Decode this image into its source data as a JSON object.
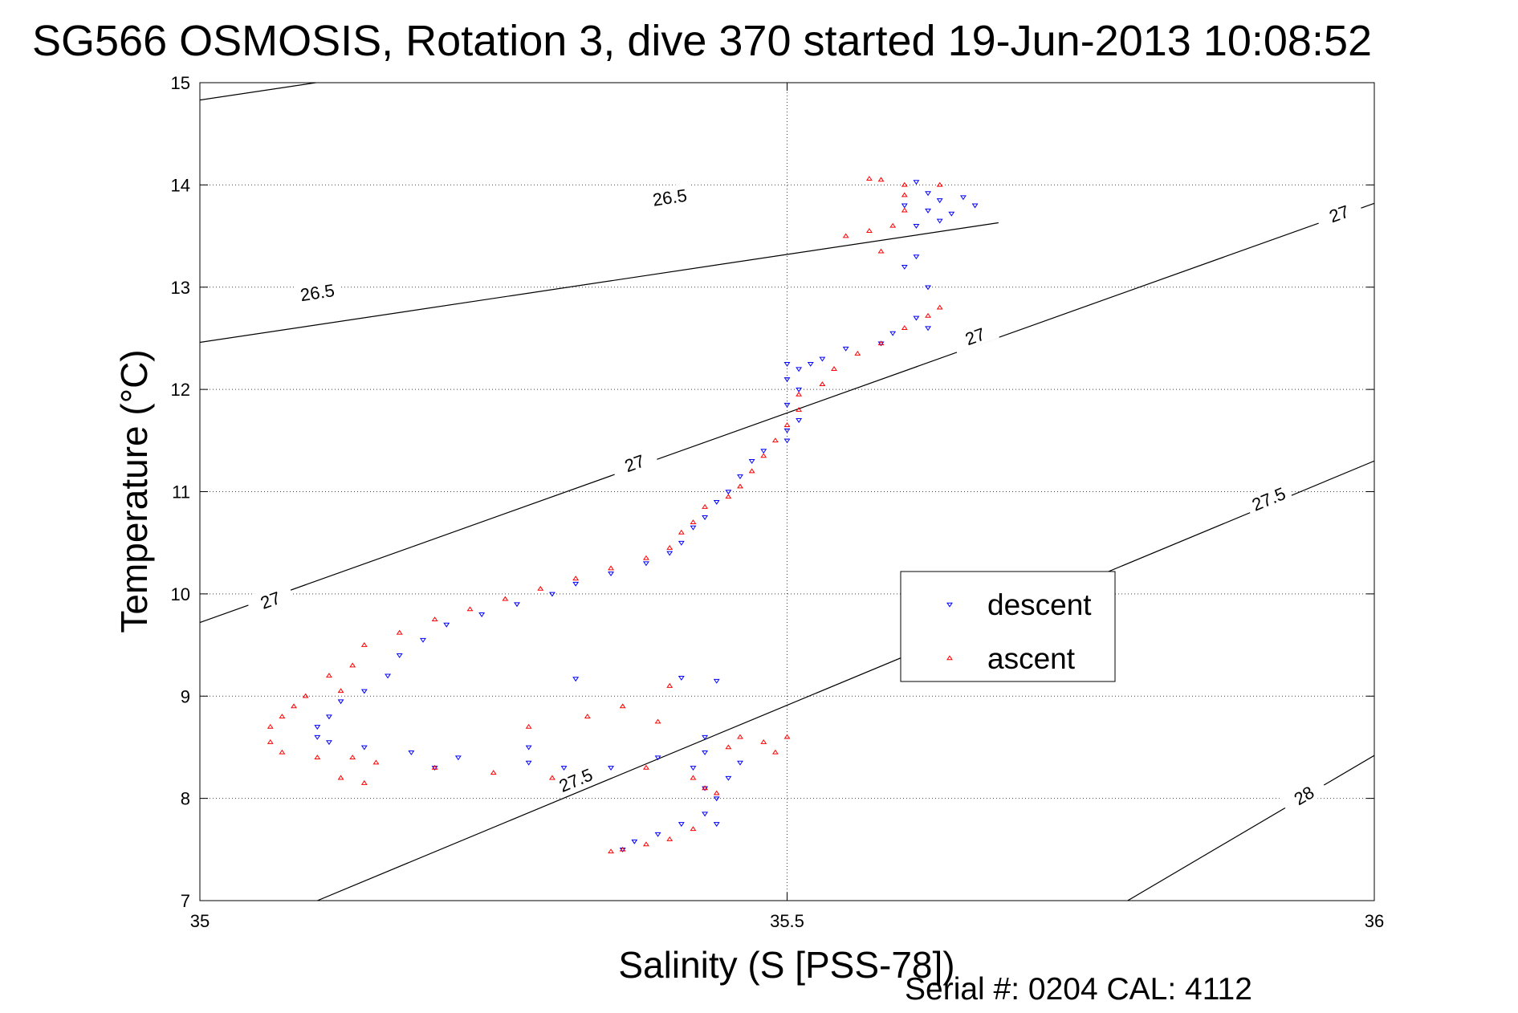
{
  "chart_data": {
    "type": "scatter",
    "title": "SG566 OSMOSIS, Rotation 3, dive 370 started 19-Jun-2013 10:08:52",
    "xlabel": "Salinity (S [PSS-78])",
    "ylabel": "Temperature (°C)",
    "xlim": [
      35,
      36
    ],
    "ylim": [
      7,
      15
    ],
    "x_ticks": [
      35,
      35.5,
      36
    ],
    "x_tick_labels": [
      "35",
      "35.5",
      "36"
    ],
    "y_ticks": [
      7,
      8,
      9,
      10,
      11,
      12,
      13,
      14,
      15
    ],
    "y_tick_labels": [
      "7",
      "8",
      "9",
      "10",
      "11",
      "12",
      "13",
      "14",
      "15"
    ],
    "grid": true,
    "legend_position": "right-center",
    "footer": "Serial #: 0204  CAL: 4112",
    "isopycnals": [
      {
        "level": 26.5,
        "label": "26.5",
        "points": [
          [
            35,
            14.83
          ],
          [
            35.68,
            16.0
          ]
        ],
        "labels_at": [
          [
            35.1,
            12.95
          ],
          [
            35.4,
            13.88
          ]
        ]
      },
      {
        "level": 26.5,
        "label": "",
        "points": [
          [
            35,
            12.46
          ],
          [
            35.68,
            13.63
          ]
        ],
        "labels_at": []
      },
      {
        "level": 27.0,
        "label": "27",
        "points": [
          [
            35,
            9.72
          ],
          [
            36,
            13.82
          ]
        ],
        "labels_at": [
          [
            35.06,
            9.94
          ],
          [
            35.37,
            11.28
          ],
          [
            35.66,
            12.52
          ],
          [
            35.97,
            13.72
          ]
        ]
      },
      {
        "level": 27.5,
        "label": "27.5",
        "points": [
          [
            35.1,
            7.0
          ],
          [
            36,
            11.3
          ]
        ],
        "labels_at": [
          [
            35.32,
            8.18
          ],
          [
            35.91,
            10.93
          ]
        ]
      },
      {
        "level": 28.0,
        "label": "28",
        "points": [
          [
            35.79,
            7.0
          ],
          [
            36,
            8.42
          ]
        ],
        "labels_at": [
          [
            35.94,
            8.03
          ]
        ]
      }
    ],
    "series": [
      {
        "name": "descent",
        "color": "#0000ff",
        "marker": "triangle-down",
        "points": [
          [
            35.61,
            14.03
          ],
          [
            35.62,
            13.92
          ],
          [
            35.63,
            13.85
          ],
          [
            35.6,
            13.8
          ],
          [
            35.62,
            13.75
          ],
          [
            35.64,
            13.72
          ],
          [
            35.63,
            13.65
          ],
          [
            35.61,
            13.6
          ],
          [
            35.65,
            13.88
          ],
          [
            35.66,
            13.8
          ],
          [
            35.61,
            13.3
          ],
          [
            35.6,
            13.2
          ],
          [
            35.62,
            13.0
          ],
          [
            35.61,
            12.7
          ],
          [
            35.59,
            12.55
          ],
          [
            35.62,
            12.6
          ],
          [
            35.58,
            12.45
          ],
          [
            35.55,
            12.4
          ],
          [
            35.53,
            12.3
          ],
          [
            35.52,
            12.25
          ],
          [
            35.51,
            12.2
          ],
          [
            35.5,
            12.25
          ],
          [
            35.5,
            12.1
          ],
          [
            35.51,
            12.0
          ],
          [
            35.5,
            11.85
          ],
          [
            35.51,
            11.7
          ],
          [
            35.5,
            11.6
          ],
          [
            35.5,
            11.5
          ],
          [
            35.48,
            11.4
          ],
          [
            35.47,
            11.3
          ],
          [
            35.46,
            11.15
          ],
          [
            35.45,
            11.0
          ],
          [
            35.44,
            10.9
          ],
          [
            35.43,
            10.75
          ],
          [
            35.42,
            10.65
          ],
          [
            35.41,
            10.5
          ],
          [
            35.4,
            10.4
          ],
          [
            35.38,
            10.3
          ],
          [
            35.35,
            10.2
          ],
          [
            35.32,
            10.1
          ],
          [
            35.3,
            10.0
          ],
          [
            35.27,
            9.9
          ],
          [
            35.24,
            9.8
          ],
          [
            35.21,
            9.7
          ],
          [
            35.19,
            9.55
          ],
          [
            35.17,
            9.4
          ],
          [
            35.16,
            9.2
          ],
          [
            35.14,
            9.05
          ],
          [
            35.12,
            8.95
          ],
          [
            35.11,
            8.8
          ],
          [
            35.1,
            8.7
          ],
          [
            35.1,
            8.6
          ],
          [
            35.11,
            8.55
          ],
          [
            35.14,
            8.5
          ],
          [
            35.18,
            8.45
          ],
          [
            35.22,
            8.4
          ],
          [
            35.28,
            8.35
          ],
          [
            35.31,
            8.3
          ],
          [
            35.35,
            8.3
          ],
          [
            35.39,
            8.4
          ],
          [
            35.43,
            8.45
          ],
          [
            35.42,
            8.3
          ],
          [
            35.43,
            8.1
          ],
          [
            35.44,
            8.0
          ],
          [
            35.43,
            7.85
          ],
          [
            35.41,
            7.75
          ],
          [
            35.39,
            7.65
          ],
          [
            35.37,
            7.58
          ],
          [
            35.36,
            7.5
          ],
          [
            35.44,
            7.75
          ],
          [
            35.45,
            8.2
          ],
          [
            35.46,
            8.35
          ],
          [
            35.43,
            8.6
          ],
          [
            35.44,
            9.15
          ],
          [
            35.41,
            9.18
          ],
          [
            35.32,
            9.17
          ],
          [
            35.28,
            8.5
          ],
          [
            35.2,
            8.3
          ]
        ]
      },
      {
        "name": "ascent",
        "color": "#ff0000",
        "marker": "triangle-up",
        "points": [
          [
            35.57,
            14.06
          ],
          [
            35.58,
            14.05
          ],
          [
            35.6,
            14.0
          ],
          [
            35.63,
            14.0
          ],
          [
            35.6,
            13.9
          ],
          [
            35.6,
            13.75
          ],
          [
            35.59,
            13.6
          ],
          [
            35.57,
            13.55
          ],
          [
            35.55,
            13.5
          ],
          [
            35.58,
            13.35
          ],
          [
            35.63,
            12.8
          ],
          [
            35.62,
            12.72
          ],
          [
            35.6,
            12.6
          ],
          [
            35.58,
            12.45
          ],
          [
            35.56,
            12.35
          ],
          [
            35.54,
            12.2
          ],
          [
            35.53,
            12.05
          ],
          [
            35.51,
            11.95
          ],
          [
            35.51,
            11.8
          ],
          [
            35.5,
            11.65
          ],
          [
            35.49,
            11.5
          ],
          [
            35.48,
            11.35
          ],
          [
            35.47,
            11.2
          ],
          [
            35.46,
            11.05
          ],
          [
            35.45,
            10.95
          ],
          [
            35.43,
            10.85
          ],
          [
            35.42,
            10.7
          ],
          [
            35.41,
            10.6
          ],
          [
            35.4,
            10.45
          ],
          [
            35.38,
            10.35
          ],
          [
            35.35,
            10.25
          ],
          [
            35.32,
            10.15
          ],
          [
            35.29,
            10.05
          ],
          [
            35.26,
            9.95
          ],
          [
            35.23,
            9.85
          ],
          [
            35.2,
            9.75
          ],
          [
            35.17,
            9.62
          ],
          [
            35.14,
            9.5
          ],
          [
            35.13,
            9.3
          ],
          [
            35.11,
            9.2
          ],
          [
            35.12,
            9.05
          ],
          [
            35.09,
            9.0
          ],
          [
            35.08,
            8.9
          ],
          [
            35.07,
            8.8
          ],
          [
            35.06,
            8.7
          ],
          [
            35.06,
            8.55
          ],
          [
            35.07,
            8.45
          ],
          [
            35.1,
            8.4
          ],
          [
            35.13,
            8.4
          ],
          [
            35.12,
            8.2
          ],
          [
            35.14,
            8.15
          ],
          [
            35.15,
            8.35
          ],
          [
            35.2,
            8.3
          ],
          [
            35.25,
            8.25
          ],
          [
            35.3,
            8.2
          ],
          [
            35.38,
            8.3
          ],
          [
            35.42,
            8.2
          ],
          [
            35.43,
            8.1
          ],
          [
            35.44,
            8.05
          ],
          [
            35.45,
            8.5
          ],
          [
            35.46,
            8.6
          ],
          [
            35.48,
            8.55
          ],
          [
            35.49,
            8.45
          ],
          [
            35.5,
            8.6
          ],
          [
            35.42,
            7.7
          ],
          [
            35.4,
            7.6
          ],
          [
            35.38,
            7.55
          ],
          [
            35.36,
            7.5
          ],
          [
            35.35,
            7.48
          ],
          [
            35.33,
            8.8
          ],
          [
            35.36,
            8.9
          ],
          [
            35.39,
            8.75
          ],
          [
            35.4,
            9.1
          ],
          [
            35.28,
            8.7
          ]
        ]
      }
    ]
  }
}
